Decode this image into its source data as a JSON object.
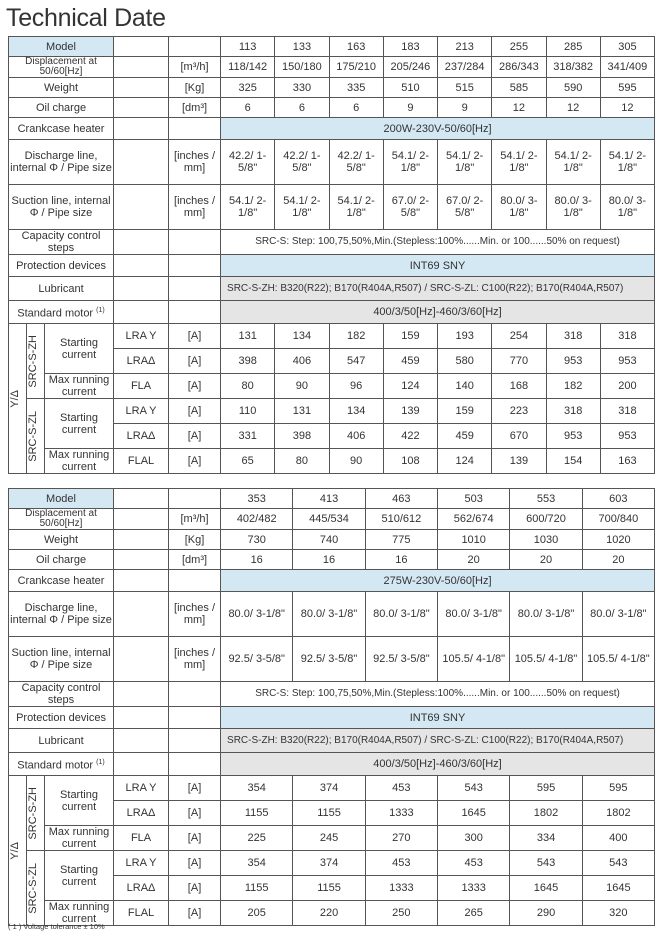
{
  "title": "Technical Date",
  "labels": {
    "model": "Model",
    "displacement": "Displacement at 50/60[Hz]",
    "weight": "Weight",
    "oil": "Oil charge",
    "crankcase": "Crankcase heater",
    "discharge": "Discharge line, internal Φ / Pipe size",
    "suction": "Suction line, internal Φ / Pipe size",
    "capacity": "Capacity control steps",
    "protection": "Protection devices",
    "lubricant": "Lubricant",
    "motor": "Standard motor",
    "motor_sup": "(1)",
    "ydelta": "Y/Δ",
    "zh": "SRC-S-ZH",
    "zl": "SRC-S-ZL",
    "starting": "Starting current",
    "maxrun": "Max running current",
    "lray": "LRA Y",
    "lrad": "LRAΔ",
    "fla": "FLA",
    "flal": "FLAL"
  },
  "units": {
    "displacement": "[m³/h]",
    "weight": "[Kg]",
    "oil": "[dm³]",
    "pipe": "[inches / mm]",
    "amp": "[A]"
  },
  "table1": {
    "models": [
      "113",
      "133",
      "163",
      "183",
      "213",
      "255",
      "285",
      "305"
    ],
    "displacement": [
      "118/142",
      "150/180",
      "175/210",
      "205/246",
      "237/284",
      "286/343",
      "318/382",
      "341/409"
    ],
    "weight": [
      "325",
      "330",
      "335",
      "510",
      "515",
      "585",
      "590",
      "595"
    ],
    "oil": [
      "6",
      "6",
      "6",
      "9",
      "9",
      "12",
      "12",
      "12"
    ],
    "crankcase": "200W-230V-50/60[Hz]",
    "discharge": [
      "42.2/ 1-5/8\"",
      "42.2/ 1-5/8\"",
      "42.2/ 1-5/8\"",
      "54.1/ 2-1/8\"",
      "54.1/ 2-1/8\"",
      "54.1/ 2-1/8\"",
      "54.1/ 2-1/8\"",
      "54.1/ 2-1/8\""
    ],
    "suction": [
      "54.1/ 2-1/8\"",
      "54.1/ 2-1/8\"",
      "54.1/ 2-1/8\"",
      "67.0/ 2-5/8\"",
      "67.0/ 2-5/8\"",
      "80.0/ 3-1/8\"",
      "80.0/ 3-1/8\"",
      "80.0/ 3-1/8\""
    ],
    "capacity": "SRC-S: Step: 100,75,50%,Min.(Stepless:100%......Min. or 100......50% on request)",
    "protection": "INT69 SNY",
    "lubricant": "SRC-S-ZH: B320(R22); B170(R404A,R507) / SRC-S-ZL: C100(R22); B170(R404A,R507)",
    "motor": "400/3/50[Hz]-460/3/60[Hz]",
    "zh_lray": [
      "131",
      "134",
      "182",
      "159",
      "193",
      "254",
      "318",
      "318"
    ],
    "zh_lrad": [
      "398",
      "406",
      "547",
      "459",
      "580",
      "770",
      "953",
      "953"
    ],
    "zh_fla": [
      "80",
      "90",
      "96",
      "124",
      "140",
      "168",
      "182",
      "200"
    ],
    "zl_lray": [
      "110",
      "131",
      "134",
      "139",
      "159",
      "223",
      "318",
      "318"
    ],
    "zl_lrad": [
      "331",
      "398",
      "406",
      "422",
      "459",
      "670",
      "953",
      "953"
    ],
    "zl_flal": [
      "65",
      "80",
      "90",
      "108",
      "124",
      "139",
      "154",
      "163"
    ]
  },
  "table2": {
    "models": [
      "353",
      "413",
      "463",
      "503",
      "553",
      "603"
    ],
    "displacement": [
      "402/482",
      "445/534",
      "510/612",
      "562/674",
      "600/720",
      "700/840"
    ],
    "weight": [
      "730",
      "740",
      "775",
      "1010",
      "1030",
      "1020"
    ],
    "oil": [
      "16",
      "16",
      "16",
      "20",
      "20",
      "20"
    ],
    "crankcase": "275W-230V-50/60[Hz]",
    "discharge": [
      "80.0/ 3-1/8\"",
      "80.0/ 3-1/8\"",
      "80.0/ 3-1/8\"",
      "80.0/ 3-1/8\"",
      "80.0/ 3-1/8\"",
      "80.0/ 3-1/8\""
    ],
    "suction": [
      "92.5/ 3-5/8\"",
      "92.5/ 3-5/8\"",
      "92.5/ 3-5/8\"",
      "105.5/ 4-1/8\"",
      "105.5/ 4-1/8\"",
      "105.5/ 4-1/8\""
    ],
    "capacity": "SRC-S: Step: 100,75,50%,Min.(Stepless:100%......Min. or 100......50% on request)",
    "protection": "INT69 SNY",
    "lubricant": "SRC-S-ZH: B320(R22); B170(R404A,R507) / SRC-S-ZL: C100(R22); B170(R404A,R507)",
    "motor": "400/3/50[Hz]-460/3/60[Hz]",
    "zh_lray": [
      "354",
      "374",
      "453",
      "543",
      "595",
      "595"
    ],
    "zh_lrad": [
      "1155",
      "1155",
      "1333",
      "1645",
      "1802",
      "1802"
    ],
    "zh_fla": [
      "225",
      "245",
      "270",
      "300",
      "334",
      "400"
    ],
    "zl_lray": [
      "354",
      "374",
      "453",
      "453",
      "543",
      "543"
    ],
    "zl_lrad": [
      "1155",
      "1155",
      "1333",
      "1333",
      "1645",
      "1645"
    ],
    "zl_flal": [
      "205",
      "220",
      "250",
      "265",
      "290",
      "320"
    ]
  },
  "footnote": "( 1 ) Voltage tolerance ± 10%",
  "colors": {
    "header_blue": "#d4e8f4",
    "value_gray": "#e5e5e5"
  }
}
